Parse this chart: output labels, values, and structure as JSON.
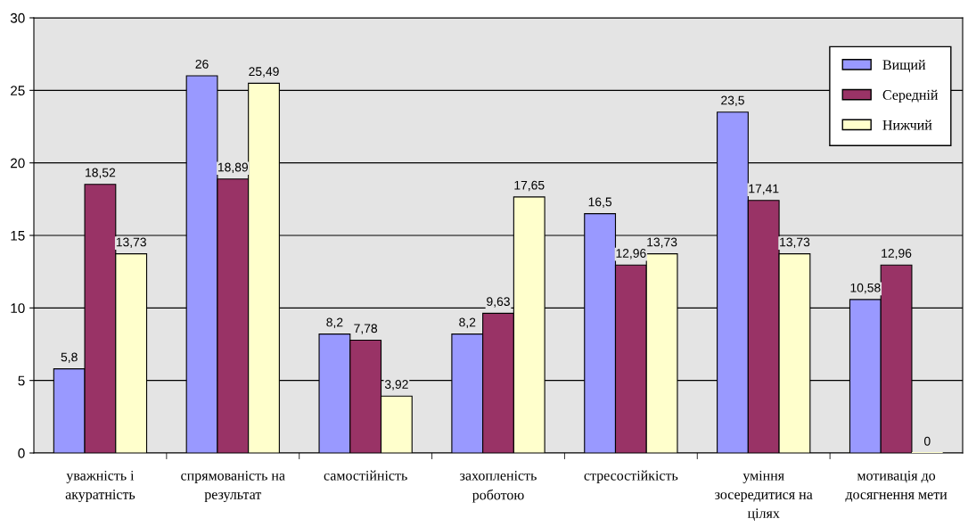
{
  "chart_data": {
    "type": "bar",
    "categories": [
      "уважність і\nакуратність",
      "спрямованість на\nрезультат",
      "самостійність",
      "захопленість\nроботою",
      "стресостійкість",
      "уміння\nзосередитися на\nцілях",
      "мотивація до\nдосягнення мети"
    ],
    "series": [
      {
        "name": "Вищий",
        "color": "#9999ff",
        "values": [
          5.8,
          26,
          8.2,
          8.2,
          16.5,
          23.5,
          10.58
        ],
        "value_labels": [
          "5,8",
          "26",
          "8,2",
          "8,2",
          "16,5",
          "23,5",
          "10,58"
        ]
      },
      {
        "name": "Середній",
        "color": "#993366",
        "values": [
          18.52,
          18.89,
          7.78,
          9.63,
          12.96,
          17.41,
          12.96
        ],
        "value_labels": [
          "18,52",
          "18,89",
          "7,78",
          "9,63",
          "12,96",
          "17,41",
          "12,96"
        ]
      },
      {
        "name": "Нижчий",
        "color": "#ffffcc",
        "values": [
          13.73,
          25.49,
          3.92,
          17.65,
          13.73,
          13.73,
          0
        ],
        "value_labels": [
          "13,73",
          "25,49",
          "3,92",
          "17,65",
          "13,73",
          "13,73",
          "0"
        ]
      }
    ],
    "ylim": [
      0,
      30
    ],
    "yticks": [
      0,
      5,
      10,
      15,
      20,
      25,
      30
    ],
    "grid": "y",
    "legend": "top right"
  }
}
